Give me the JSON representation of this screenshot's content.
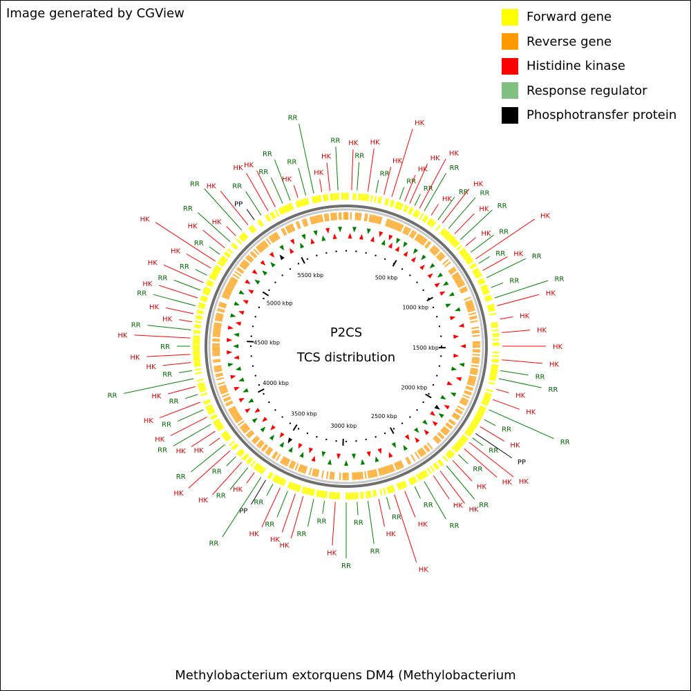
{
  "credit": "Image generated by CGView",
  "legend": [
    {
      "label": "Forward gene",
      "color": "#ffff00"
    },
    {
      "label": "Reverse gene",
      "color": "#ff9900"
    },
    {
      "label": "Histidine kinase",
      "color": "#ff0000"
    },
    {
      "label": "Response regulator",
      "color": "#80c080"
    },
    {
      "label": "Phosphotransfer protein",
      "color": "#000000"
    }
  ],
  "center": {
    "title": "P2CS",
    "subtitle": "TCS distribution"
  },
  "footer": "Methylobacterium extorquens DM4 (Methylobacterium",
  "label_colors": {
    "HK": "#ff0000",
    "RR": "#008000",
    "PP": "#000000"
  },
  "label_text_colors": {
    "HK": "#d40000",
    "RR": "#006400",
    "PP": "#000000"
  },
  "ruler": {
    "ticks": [
      {
        "text": "500 kbp",
        "kbp": 500
      },
      {
        "text": "1000 kbp",
        "kbp": 1000
      },
      {
        "text": "1500 kbp",
        "kbp": 1500
      },
      {
        "text": "2000 kbp",
        "kbp": 2000
      },
      {
        "text": "2500 kbp",
        "kbp": 2500
      },
      {
        "text": "3000 kbp",
        "kbp": 3000
      },
      {
        "text": "3500 kbp",
        "kbp": 3500
      },
      {
        "text": "4000 kbp",
        "kbp": 4000
      },
      {
        "text": "4500 kbp",
        "kbp": 4500
      },
      {
        "text": "5000 kbp",
        "kbp": 5000
      },
      {
        "text": "5500 kbp",
        "kbp": 5500
      }
    ]
  },
  "features": [
    {
      "type": "HK",
      "angle": 2
    },
    {
      "type": "RR",
      "angle": 4
    },
    {
      "type": "HK",
      "angle": 8
    },
    {
      "type": "RR",
      "angle": 11
    },
    {
      "type": "HK",
      "angle": 14
    },
    {
      "type": "HK",
      "angle": 17
    },
    {
      "type": "RR",
      "angle": 20
    },
    {
      "type": "HK",
      "angle": 22
    },
    {
      "type": "HK",
      "angle": 24
    },
    {
      "type": "RR",
      "angle": 26
    },
    {
      "type": "HK",
      "angle": 28
    },
    {
      "type": "RR",
      "angle": 30
    },
    {
      "type": "HK",
      "angle": 33
    },
    {
      "type": "RR",
      "angle": 36
    },
    {
      "type": "HK",
      "angle": 38
    },
    {
      "type": "RR",
      "angle": 41
    },
    {
      "type": "HK",
      "angle": 44
    },
    {
      "type": "RR",
      "angle": 47
    },
    {
      "type": "HK",
      "angle": 50
    },
    {
      "type": "RR",
      "angle": 53
    },
    {
      "type": "HK",
      "angle": 56
    },
    {
      "type": "RR",
      "angle": 58
    },
    {
      "type": "HK",
      "angle": 61
    },
    {
      "type": "RR",
      "angle": 64
    },
    {
      "type": "RR",
      "angle": 68
    },
    {
      "type": "RR",
      "angle": 72
    },
    {
      "type": "HK",
      "angle": 75
    },
    {
      "type": "HK",
      "angle": 80
    },
    {
      "type": "HK",
      "angle": 85
    },
    {
      "type": "HK",
      "angle": 90
    },
    {
      "type": "HK",
      "angle": 95
    },
    {
      "type": "RR",
      "angle": 99
    },
    {
      "type": "RR",
      "angle": 102
    },
    {
      "type": "HK",
      "angle": 106
    },
    {
      "type": "HK",
      "angle": 110
    },
    {
      "type": "RR",
      "angle": 114
    },
    {
      "type": "RR",
      "angle": 118
    },
    {
      "type": "HK",
      "angle": 121
    },
    {
      "type": "PP",
      "angle": 124
    },
    {
      "type": "RR",
      "angle": 126
    },
    {
      "type": "HK",
      "angle": 128
    },
    {
      "type": "HK",
      "angle": 131
    },
    {
      "type": "RR",
      "angle": 134
    },
    {
      "type": "HK",
      "angle": 137
    },
    {
      "type": "RR",
      "angle": 140
    },
    {
      "type": "HK",
      "angle": 143
    },
    {
      "type": "HK",
      "angle": 146
    },
    {
      "type": "RR",
      "angle": 150
    },
    {
      "type": "RR",
      "angle": 154
    },
    {
      "type": "HK",
      "angle": 158
    },
    {
      "type": "HK",
      "angle": 162
    },
    {
      "type": "RR",
      "angle": 165
    },
    {
      "type": "HK",
      "angle": 168
    },
    {
      "type": "RR",
      "angle": 172
    },
    {
      "type": "RR",
      "angle": 176
    },
    {
      "type": "RR",
      "angle": 180
    },
    {
      "type": "HK",
      "angle": 184
    },
    {
      "type": "RR",
      "angle": 188
    },
    {
      "type": "RR",
      "angle": 192
    },
    {
      "type": "HK",
      "angle": 196
    },
    {
      "type": "HK",
      "angle": 199
    },
    {
      "type": "RR",
      "angle": 202
    },
    {
      "type": "HK",
      "angle": 205
    },
    {
      "type": "RR",
      "angle": 208
    },
    {
      "type": "PP",
      "angle": 211
    },
    {
      "type": "RR",
      "angle": 213
    },
    {
      "type": "HK",
      "angle": 216
    },
    {
      "type": "RR",
      "angle": 219
    },
    {
      "type": "HK",
      "angle": 222
    },
    {
      "type": "RR",
      "angle": 225
    },
    {
      "type": "HK",
      "angle": 228
    },
    {
      "type": "RR",
      "angle": 231
    },
    {
      "type": "HK",
      "angle": 234
    },
    {
      "type": "HK",
      "angle": 237
    },
    {
      "type": "RR",
      "angle": 240
    },
    {
      "type": "HK",
      "angle": 243
    },
    {
      "type": "RR",
      "angle": 246
    },
    {
      "type": "HK",
      "angle": 249
    },
    {
      "type": "RR",
      "angle": 252
    },
    {
      "type": "HK",
      "angle": 255
    },
    {
      "type": "RR",
      "angle": 258
    },
    {
      "type": "RR",
      "angle": 261
    },
    {
      "type": "HK",
      "angle": 264
    },
    {
      "type": "HK",
      "angle": 267
    },
    {
      "type": "RR",
      "angle": 270
    },
    {
      "type": "HK",
      "angle": 273
    },
    {
      "type": "RR",
      "angle": 276
    },
    {
      "type": "HK",
      "angle": 279
    },
    {
      "type": "HK",
      "angle": 282
    },
    {
      "type": "RR",
      "angle": 285
    },
    {
      "type": "HK",
      "angle": 288
    },
    {
      "type": "RR",
      "angle": 291
    },
    {
      "type": "HK",
      "angle": 294
    },
    {
      "type": "RR",
      "angle": 297
    },
    {
      "type": "HK",
      "angle": 300
    },
    {
      "type": "HK",
      "angle": 303
    },
    {
      "type": "RR",
      "angle": 306
    },
    {
      "type": "HK",
      "angle": 309
    },
    {
      "type": "RR",
      "angle": 312
    },
    {
      "type": "HK",
      "angle": 315
    },
    {
      "type": "RR",
      "angle": 318
    },
    {
      "type": "HK",
      "angle": 321
    },
    {
      "type": "PP",
      "angle": 324
    },
    {
      "type": "RR",
      "angle": 327
    },
    {
      "type": "HK",
      "angle": 330
    },
    {
      "type": "HK",
      "angle": 333
    },
    {
      "type": "RR",
      "angle": 336
    },
    {
      "type": "RR",
      "angle": 339
    },
    {
      "type": "HK",
      "angle": 342
    },
    {
      "type": "RR",
      "angle": 345
    },
    {
      "type": "RR",
      "angle": 348
    },
    {
      "type": "HK",
      "angle": 351
    },
    {
      "type": "HK",
      "angle": 354
    },
    {
      "type": "RR",
      "angle": 357
    }
  ]
}
